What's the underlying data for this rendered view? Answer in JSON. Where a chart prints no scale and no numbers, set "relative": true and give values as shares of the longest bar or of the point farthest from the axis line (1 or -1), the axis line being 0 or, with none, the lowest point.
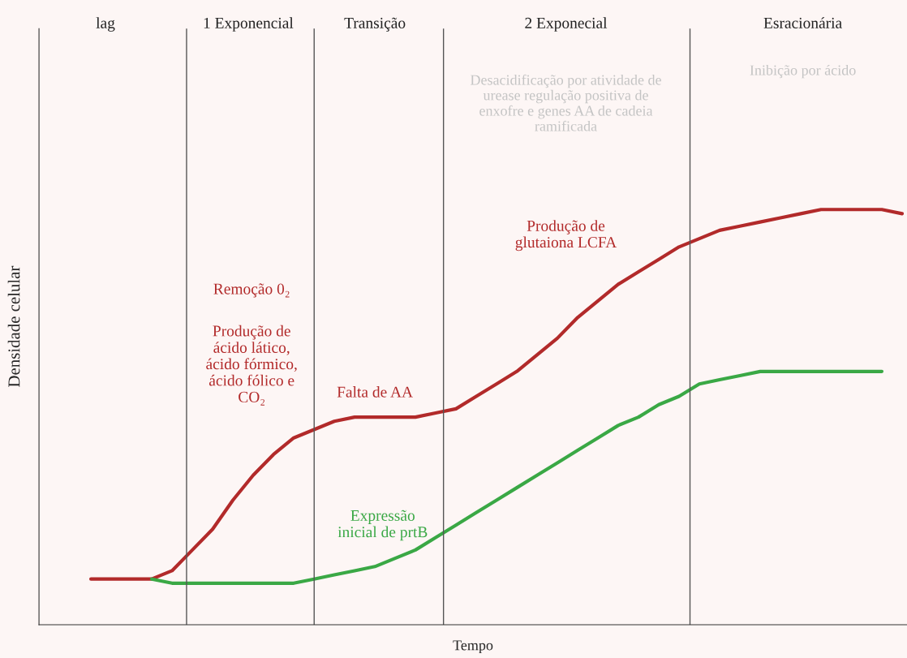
{
  "chart_data": {
    "type": "line",
    "relative": true,
    "line_style": "solid",
    "marker": "none",
    "xlabel": "Tempo",
    "ylabel": "Densidade celular",
    "categories": [
      null,
      null,
      null,
      null,
      null,
      null,
      null,
      null,
      null,
      null,
      null,
      null,
      null,
      null,
      null,
      null,
      null,
      null,
      null,
      null,
      null,
      null,
      null,
      null,
      null,
      null,
      null,
      null,
      null,
      null,
      null,
      null,
      null,
      null,
      null,
      null,
      null,
      null,
      null,
      null,
      null
    ],
    "series": [
      {
        "color": "#b22a2a",
        "values": [
          0.11,
          0.11,
          0.11,
          0.11,
          0.13,
          0.18,
          0.23,
          0.3,
          0.36,
          0.41,
          0.45,
          0.47,
          0.49,
          0.5,
          0.5,
          0.5,
          0.5,
          0.51,
          0.52,
          0.55,
          0.58,
          0.61,
          0.65,
          0.69,
          0.74,
          0.78,
          0.82,
          0.85,
          0.88,
          0.91,
          0.93,
          0.95,
          0.96,
          0.97,
          0.98,
          0.99,
          1.0,
          1.0,
          1.0,
          1.0,
          0.99
        ]
      },
      {
        "color": "#3aa845",
        "values": [
          null,
          null,
          null,
          0.11,
          0.1,
          0.1,
          0.1,
          0.1,
          0.1,
          0.1,
          0.1,
          0.11,
          0.12,
          0.13,
          0.14,
          0.16,
          0.18,
          0.21,
          0.24,
          0.27,
          0.3,
          0.33,
          0.36,
          0.39,
          0.42,
          0.45,
          0.48,
          0.5,
          0.53,
          0.55,
          0.58,
          0.59,
          0.6,
          0.61,
          0.61,
          0.61,
          0.61,
          0.61,
          0.61,
          0.61,
          null
        ]
      }
    ],
    "annotations": [
      "lag",
      "1 Exponencial",
      "Transição",
      "2 Exponecial",
      "Esracionária",
      "Desacidificação por atividade de\nurease regulação positiva de\nenxofre e genes AA de cadeia\nramificada",
      "Inibição por ácido",
      "Remoção 0₂",
      "Produção de\nácido lático,\nácido fórmico,\nácido fólico e\nCO₂",
      "Falta de AA",
      "Expressão\ninicial de prtB",
      "Produção de\nglutaiona LCFA"
    ]
  }
}
